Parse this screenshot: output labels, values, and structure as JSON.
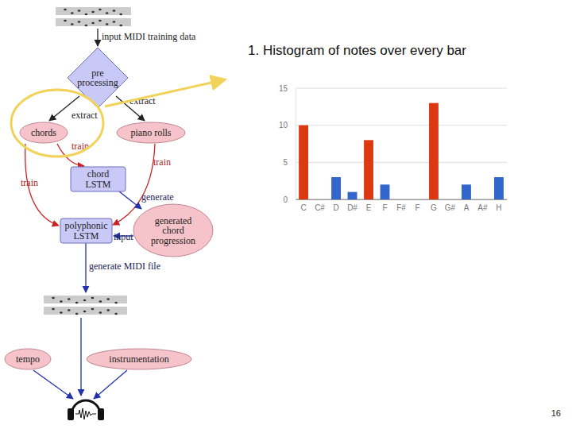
{
  "chart_data": {
    "type": "bar",
    "title": "1. Histogram of notes over every bar",
    "categories": [
      "C",
      "C#",
      "D",
      "D#",
      "E",
      "F",
      "F#",
      "F",
      "G",
      "G#",
      "A",
      "A#",
      "H"
    ],
    "values": [
      10,
      0,
      3,
      1,
      8,
      2,
      0,
      0,
      13,
      0,
      2,
      0,
      3
    ],
    "colors": [
      "#dc3912",
      "#3366cc",
      "#3366cc",
      "#3366cc",
      "#dc3912",
      "#3366cc",
      "#3366cc",
      "#3366cc",
      "#dc3912",
      "#3366cc",
      "#3366cc",
      "#3366cc",
      "#3366cc"
    ],
    "ylim": [
      0,
      15
    ],
    "yticks": [
      0,
      5,
      10,
      15
    ],
    "grid": true
  },
  "diagram": {
    "nodes": [
      {
        "label": [
          "pre",
          "processing"
        ]
      },
      {
        "label": [
          "chords"
        ]
      },
      {
        "label": [
          "piano rolls"
        ]
      },
      {
        "label": [
          "chord",
          "LSTM"
        ]
      },
      {
        "label": [
          "generated",
          "chord",
          "progression"
        ]
      },
      {
        "label": [
          "polyphonic",
          "LSTM"
        ]
      },
      {
        "label": [
          "tempo"
        ]
      },
      {
        "label": [
          "instrumentation"
        ]
      }
    ],
    "edge_labels": [
      "input MIDI training data",
      "extract",
      "extract",
      "train",
      "train",
      "train",
      "generate",
      "input",
      "generate MIDI file"
    ]
  },
  "page_number": 16
}
